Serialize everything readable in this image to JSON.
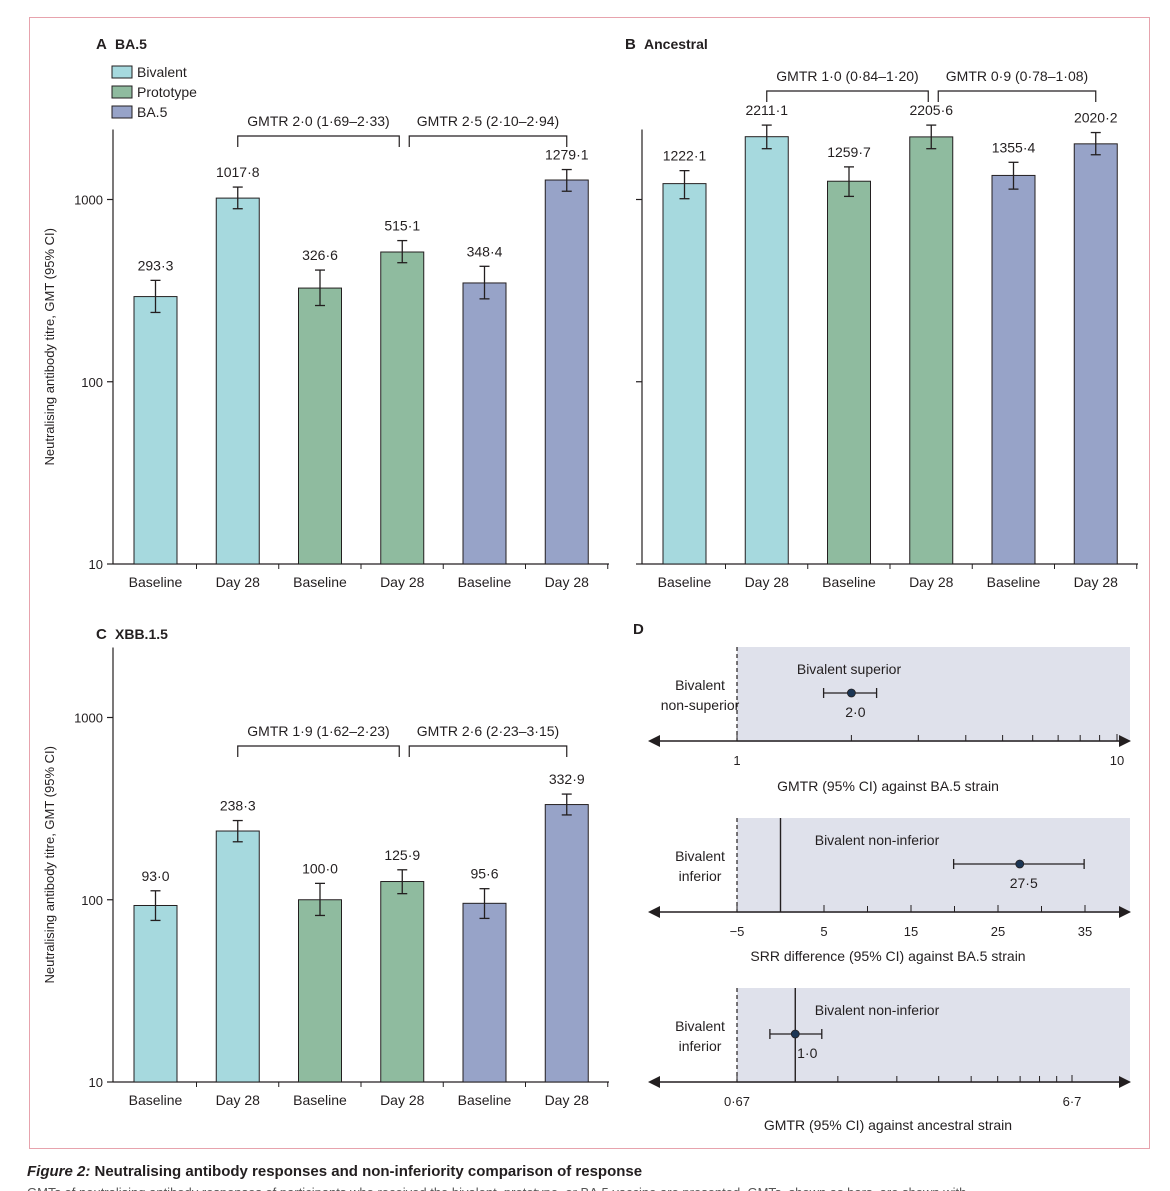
{
  "colors": {
    "bivalent": "#a6d9de",
    "prototype": "#8fbb9f",
    "ba5": "#97a3c8",
    "shade": "#dfe1eb",
    "frame": "#e7a3ad",
    "point": "#1b3554"
  },
  "legend": [
    "Bivalent",
    "Prototype",
    "BA.5"
  ],
  "ylabel": "Neutralising antibody titre, GMT (95% CI)",
  "categories": [
    "Baseline",
    "Day 28",
    "Baseline",
    "Day 28",
    "Baseline",
    "Day 28"
  ],
  "yticks": [
    "10",
    "100",
    "1000"
  ],
  "chart_data": [
    {
      "type": "bar",
      "panel": "A",
      "title": "BA.5",
      "ylog": true,
      "ylim": [
        10,
        2500
      ],
      "categories": [
        "Baseline",
        "Day 28",
        "Baseline",
        "Day 28",
        "Baseline",
        "Day 28"
      ],
      "groups": [
        "Bivalent",
        "Bivalent",
        "Prototype",
        "Prototype",
        "BA.5",
        "BA.5"
      ],
      "values": [
        293.3,
        1017.8,
        326.6,
        515.1,
        348.4,
        1279.1
      ],
      "labels": [
        "293·3",
        "1017·8",
        "326·6",
        "515·1",
        "348·4",
        "1279·1"
      ],
      "ci": [
        [
          240,
          360
        ],
        [
          890,
          1170
        ],
        [
          262,
          410
        ],
        [
          450,
          595
        ],
        [
          285,
          430
        ],
        [
          1110,
          1460
        ]
      ],
      "brackets": [
        {
          "from": 1,
          "to": 3,
          "text": "GMTR 2·0 (1·69–2·33)"
        },
        {
          "from": 3,
          "to": 5,
          "text": "GMTR 2·5 (2·10–2·94)"
        }
      ]
    },
    {
      "type": "bar",
      "panel": "B",
      "title": "Ancestral",
      "ylog": true,
      "ylim": [
        10,
        2500
      ],
      "categories": [
        "Baseline",
        "Day 28",
        "Baseline",
        "Day 28",
        "Baseline",
        "Day 28"
      ],
      "groups": [
        "Bivalent",
        "Bivalent",
        "Prototype",
        "Prototype",
        "BA.5",
        "BA.5"
      ],
      "values": [
        1222.1,
        2211.1,
        1259.7,
        2205.6,
        1355.4,
        2020.2
      ],
      "labels": [
        "1222·1",
        "2211·1",
        "1259·7",
        "2205·6",
        "1355·4",
        "2020·2"
      ],
      "ci": [
        [
          1010,
          1440
        ],
        [
          1900,
          2560
        ],
        [
          1040,
          1510
        ],
        [
          1900,
          2560
        ],
        [
          1140,
          1600
        ],
        [
          1760,
          2330
        ]
      ],
      "brackets": [
        {
          "from": 1,
          "to": 3,
          "text": "GMTR 1·0 (0·84–1·20)"
        },
        {
          "from": 3,
          "to": 5,
          "text": "GMTR 0·9 (0·78–1·08)"
        }
      ]
    },
    {
      "type": "bar",
      "panel": "C",
      "title": "XBB.1.5",
      "ylog": true,
      "ylim": [
        10,
        2500
      ],
      "categories": [
        "Baseline",
        "Day 28",
        "Baseline",
        "Day 28",
        "Baseline",
        "Day 28"
      ],
      "groups": [
        "Bivalent",
        "Bivalent",
        "Prototype",
        "Prototype",
        "BA.5",
        "BA.5"
      ],
      "values": [
        93.0,
        238.3,
        100.0,
        125.9,
        95.6,
        332.9
      ],
      "labels": [
        "93·0",
        "238·3",
        "100·0",
        "125·9",
        "95·6",
        "332·9"
      ],
      "ci": [
        [
          77,
          112
        ],
        [
          208,
          272
        ],
        [
          82,
          123
        ],
        [
          108,
          146
        ],
        [
          79,
          115
        ],
        [
          292,
          380
        ]
      ],
      "brackets": [
        {
          "from": 1,
          "to": 3,
          "text": "GMTR 1·9 (1·62–2·23)"
        },
        {
          "from": 3,
          "to": 5,
          "text": "GMTR 2·6 (2·23–3·15)"
        }
      ]
    },
    {
      "type": "forest",
      "panel": "D",
      "rows": [
        {
          "xlabel": "GMTR (95% CI) against BA.5 strain",
          "scale": "log",
          "ticks": [
            "1",
            "10"
          ],
          "margin": "1",
          "left_text": [
            "Bivalent",
            "non-superior"
          ],
          "right_text": "Bivalent superior",
          "point": 2.0,
          "ci": [
            1.69,
            2.33
          ],
          "label": "2·0"
        },
        {
          "xlabel": "SRR difference (95% CI) against BA.5 strain",
          "scale": "linear",
          "ticks": [
            "−5",
            "5",
            "15",
            "25",
            "35"
          ],
          "margin": "−5",
          "left_text": [
            "Bivalent",
            "inferior"
          ],
          "right_text": "Bivalent non-inferior",
          "point": 27.5,
          "ci": [
            19.9,
            34.9
          ],
          "label": "27·5"
        },
        {
          "xlabel": "GMTR (95% CI) against ancestral strain",
          "scale": "log",
          "ticks": [
            "0·67",
            "6·7"
          ],
          "margin": "0·67",
          "left_text": [
            "Bivalent",
            "inferior"
          ],
          "right_text": "Bivalent non-inferior",
          "point": 1.0,
          "ci": [
            0.84,
            1.2
          ],
          "label": "1·0"
        }
      ]
    }
  ],
  "caption": {
    "label": "Figure 2:",
    "text": " Neutralising antibody responses and non-inferiority comparison of response",
    "cut": "GMTs of neutralising antibody responses of participants who received the bivalent, prototype, or BA.5 vaccine are presented. GMTs, shown as bars, are shown with"
  }
}
